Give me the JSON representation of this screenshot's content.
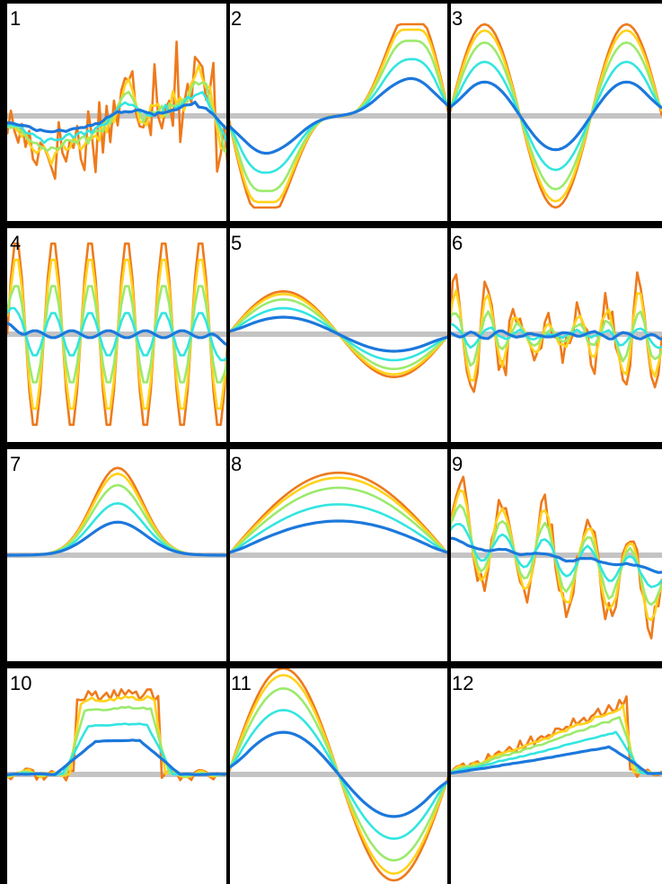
{
  "figure": {
    "description_grid": "4 rows x 3 columns of small multiples",
    "colors": {
      "background": "#ffffff",
      "frame": "#000000",
      "baseline": "#c4c4c4",
      "series": [
        "#ee7a1c",
        "#ffd21a",
        "#9bea6c",
        "#33e5e0",
        "#1c78dc"
      ]
    }
  },
  "chart_data": [
    {
      "type": "line",
      "label": "1",
      "shape": "noisy",
      "x": [
        0,
        1
      ],
      "ylim": [
        -1,
        1
      ],
      "baseline_y": 0
    },
    {
      "type": "line",
      "label": "2",
      "shape": "dip-wave",
      "x": [
        0,
        1
      ],
      "ylim": [
        -1,
        1
      ],
      "baseline_y": 0
    },
    {
      "type": "line",
      "label": "3",
      "shape": "sine-2-lobes",
      "x": [
        0,
        1
      ],
      "ylim": [
        -1,
        1
      ],
      "baseline_y": 0
    },
    {
      "type": "line",
      "label": "4",
      "shape": "high-freq",
      "x": [
        0,
        1
      ],
      "ylim": [
        -1,
        1
      ],
      "baseline_y": 0
    },
    {
      "type": "line",
      "label": "5",
      "shape": "sine-plus-alt",
      "x": [
        0,
        1
      ],
      "ylim": [
        -1,
        1
      ],
      "baseline_y": 0
    },
    {
      "type": "line",
      "label": "6",
      "shape": "noisy-2",
      "x": [
        0,
        1
      ],
      "ylim": [
        -1,
        1
      ],
      "baseline_y": 0
    },
    {
      "type": "line",
      "label": "7",
      "shape": "bump",
      "x": [
        0,
        1
      ],
      "ylim": [
        -1,
        1
      ],
      "baseline_y": 0
    },
    {
      "type": "line",
      "label": "8",
      "shape": "half-sine",
      "x": [
        0,
        1
      ],
      "ylim": [
        -1,
        1
      ],
      "baseline_y": 0
    },
    {
      "type": "line",
      "label": "9",
      "shape": "ramp-noise",
      "x": [
        0,
        1
      ],
      "ylim": [
        -1,
        1
      ],
      "baseline_y": 0
    },
    {
      "type": "line",
      "label": "10",
      "shape": "box",
      "x": [
        0,
        1
      ],
      "ylim": [
        -1,
        1
      ],
      "baseline_y": 0
    },
    {
      "type": "line",
      "label": "11",
      "shape": "triangle-wave",
      "x": [
        0,
        1
      ],
      "ylim": [
        -1,
        1
      ],
      "baseline_y": 0
    },
    {
      "type": "line",
      "label": "12",
      "shape": "sawtooth",
      "x": [
        0,
        1
      ],
      "ylim": [
        -1,
        1
      ],
      "baseline_y": 0
    }
  ]
}
